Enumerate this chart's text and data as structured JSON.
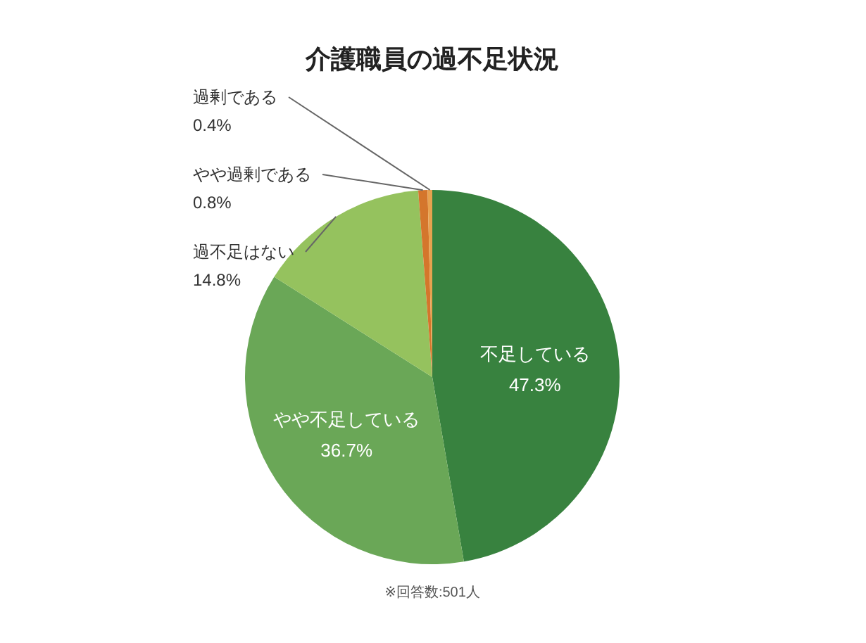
{
  "chart_data": {
    "type": "pie",
    "title": "介護職員の過不足状況",
    "categories": [
      "不足している",
      "やや不足している",
      "過不足はない",
      "やや過剰である",
      "過剰である"
    ],
    "values": [
      47.3,
      36.7,
      14.8,
      0.8,
      0.4
    ],
    "value_labels": [
      "47.3%",
      "36.7%",
      "14.8%",
      "0.8%",
      "0.4%"
    ],
    "colors": [
      "#38823f",
      "#6aa757",
      "#95c25e",
      "#d4762c",
      "#e8a24f"
    ],
    "annotations": [
      "※回答数:501人"
    ]
  }
}
